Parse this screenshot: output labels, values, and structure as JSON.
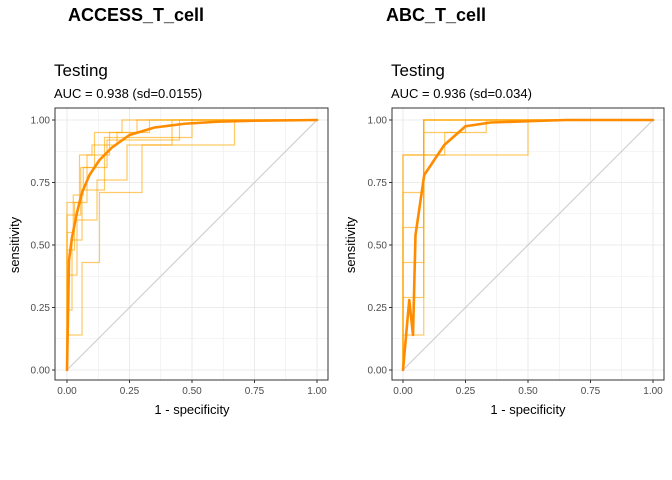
{
  "chart_data": [
    {
      "type": "line",
      "panel_header": "ACCESS_T_cell",
      "title": "Testing",
      "subtitle": "AUC = 0.938 (sd=0.0155)",
      "xlabel": "1 - specificity",
      "ylabel": "sensitivity",
      "xlim": [
        0,
        1
      ],
      "ylim": [
        0,
        1
      ],
      "x_ticks": [
        "0.00",
        "0.25",
        "0.50",
        "0.75",
        "1.00"
      ],
      "y_ticks": [
        "0.00",
        "0.25",
        "0.50",
        "0.75",
        "1.00"
      ],
      "grid": true,
      "reference_diagonal": true,
      "colors": {
        "mean": "#ff8c00",
        "folds": "#ffa500",
        "diagonal": "#cccccc",
        "grid": "#ebebeb",
        "border": "#333333"
      },
      "mean_curve": {
        "x": [
          0,
          0.008,
          0.02,
          0.04,
          0.06,
          0.09,
          0.13,
          0.18,
          0.25,
          0.35,
          0.47,
          0.6,
          0.75,
          1.0
        ],
        "y": [
          0,
          0.44,
          0.53,
          0.63,
          0.71,
          0.78,
          0.84,
          0.89,
          0.94,
          0.97,
          0.985,
          0.993,
          0.997,
          1.0
        ]
      },
      "fold_curves": [
        {
          "x": [
            0,
            0,
            0.055,
            0.055,
            0.11,
            0.11,
            0.22,
            0.22,
            1.0
          ],
          "y": [
            0,
            0.62,
            0.62,
            0.81,
            0.81,
            0.95,
            0.95,
            1.0,
            1.0
          ]
        },
        {
          "x": [
            0,
            0,
            0.03,
            0.03,
            0.08,
            0.08,
            0.17,
            0.17,
            0.33,
            0.33,
            1.0
          ],
          "y": [
            0,
            0.48,
            0.48,
            0.67,
            0.67,
            0.86,
            0.86,
            0.95,
            0.95,
            1.0,
            1.0
          ]
        },
        {
          "x": [
            0,
            0,
            0.04,
            0.04,
            0.12,
            0.12,
            0.24,
            0.24,
            0.42,
            0.42,
            1.0
          ],
          "y": [
            0,
            0.38,
            0.38,
            0.6,
            0.6,
            0.76,
            0.76,
            0.9,
            0.9,
            1.0,
            1.0
          ]
        },
        {
          "x": [
            0,
            0,
            0.02,
            0.02,
            0.06,
            0.06,
            0.15,
            0.15,
            0.5,
            0.5,
            1.0
          ],
          "y": [
            0,
            0.24,
            0.24,
            0.52,
            0.52,
            0.72,
            0.72,
            0.93,
            0.93,
            1.0,
            1.0
          ]
        },
        {
          "x": [
            0,
            0,
            0.05,
            0.05,
            0.1,
            0.1,
            0.2,
            0.2,
            0.28,
            0.28,
            1.0
          ],
          "y": [
            0,
            0.67,
            0.67,
            0.86,
            0.86,
            0.9,
            0.9,
            0.95,
            0.95,
            1.0,
            1.0
          ]
        },
        {
          "x": [
            0,
            0,
            0.06,
            0.06,
            0.13,
            0.13,
            0.3,
            0.3,
            0.67,
            0.67,
            1.0
          ],
          "y": [
            0,
            0.14,
            0.14,
            0.43,
            0.43,
            0.71,
            0.71,
            0.9,
            0.9,
            1.0,
            1.0
          ]
        },
        {
          "x": [
            0,
            0,
            0.025,
            0.025,
            0.065,
            0.065,
            0.16,
            0.16,
            0.45,
            0.45,
            1.0
          ],
          "y": [
            0,
            0.55,
            0.55,
            0.7,
            0.7,
            0.81,
            0.81,
            0.92,
            0.92,
            1.0,
            1.0
          ]
        }
      ]
    },
    {
      "type": "line",
      "panel_header": "ABC_T_cell",
      "title": "Testing",
      "subtitle": "AUC = 0.936 (sd=0.034)",
      "xlabel": "1 - specificity",
      "ylabel": "sensitivity",
      "xlim": [
        0,
        1
      ],
      "ylim": [
        0,
        1
      ],
      "x_ticks": [
        "0.00",
        "0.25",
        "0.50",
        "0.75",
        "1.00"
      ],
      "y_ticks": [
        "0.00",
        "0.25",
        "0.50",
        "0.75",
        "1.00"
      ],
      "grid": true,
      "reference_diagonal": true,
      "colors": {
        "mean": "#ff8c00",
        "folds": "#ffa500",
        "diagonal": "#cccccc",
        "grid": "#ebebeb",
        "border": "#333333"
      },
      "mean_curve": {
        "x": [
          0,
          0.025,
          0.04,
          0.05,
          0.085,
          0.165,
          0.25,
          0.35,
          0.5,
          0.65,
          0.8,
          1.0
        ],
        "y": [
          0,
          0.28,
          0.14,
          0.54,
          0.78,
          0.9,
          0.975,
          0.99,
          0.995,
          1.0,
          1.0,
          1.0
        ]
      },
      "fold_curves": [
        {
          "x": [
            0,
            0,
            0.083,
            0.083,
            0.25,
            0.25,
            1.0
          ],
          "y": [
            0,
            0.86,
            0.86,
            1.0,
            1.0,
            1.0,
            1.0
          ]
        },
        {
          "x": [
            0,
            0,
            0.083,
            0.083,
            0.167,
            0.167,
            0.333,
            0.333,
            1.0
          ],
          "y": [
            0,
            0.57,
            0.57,
            0.86,
            0.86,
            0.95,
            0.95,
            1.0,
            1.0
          ]
        },
        {
          "x": [
            0,
            0,
            0.083,
            0.083,
            0.5,
            0.5,
            1.0
          ],
          "y": [
            0,
            0.71,
            0.71,
            0.86,
            0.86,
            1.0,
            1.0
          ]
        },
        {
          "x": [
            0,
            0,
            0.083,
            0.083,
            0.167,
            0.167,
            1.0
          ],
          "y": [
            0,
            0.14,
            0.14,
            1.0,
            1.0,
            1.0,
            1.0
          ]
        },
        {
          "x": [
            0,
            0,
            0.083,
            0.083,
            1.0
          ],
          "y": [
            0,
            0.43,
            0.43,
            1.0,
            1.0
          ]
        },
        {
          "x": [
            0,
            0,
            0.083,
            0.083,
            1.0
          ],
          "y": [
            0,
            0.29,
            0.29,
            1.0,
            1.0
          ]
        },
        {
          "x": [
            0,
            0,
            0.083,
            0.083,
            0.25,
            0.25,
            1.0
          ],
          "y": [
            0,
            0.86,
            0.86,
            0.95,
            0.95,
            1.0,
            1.0
          ]
        }
      ]
    }
  ]
}
